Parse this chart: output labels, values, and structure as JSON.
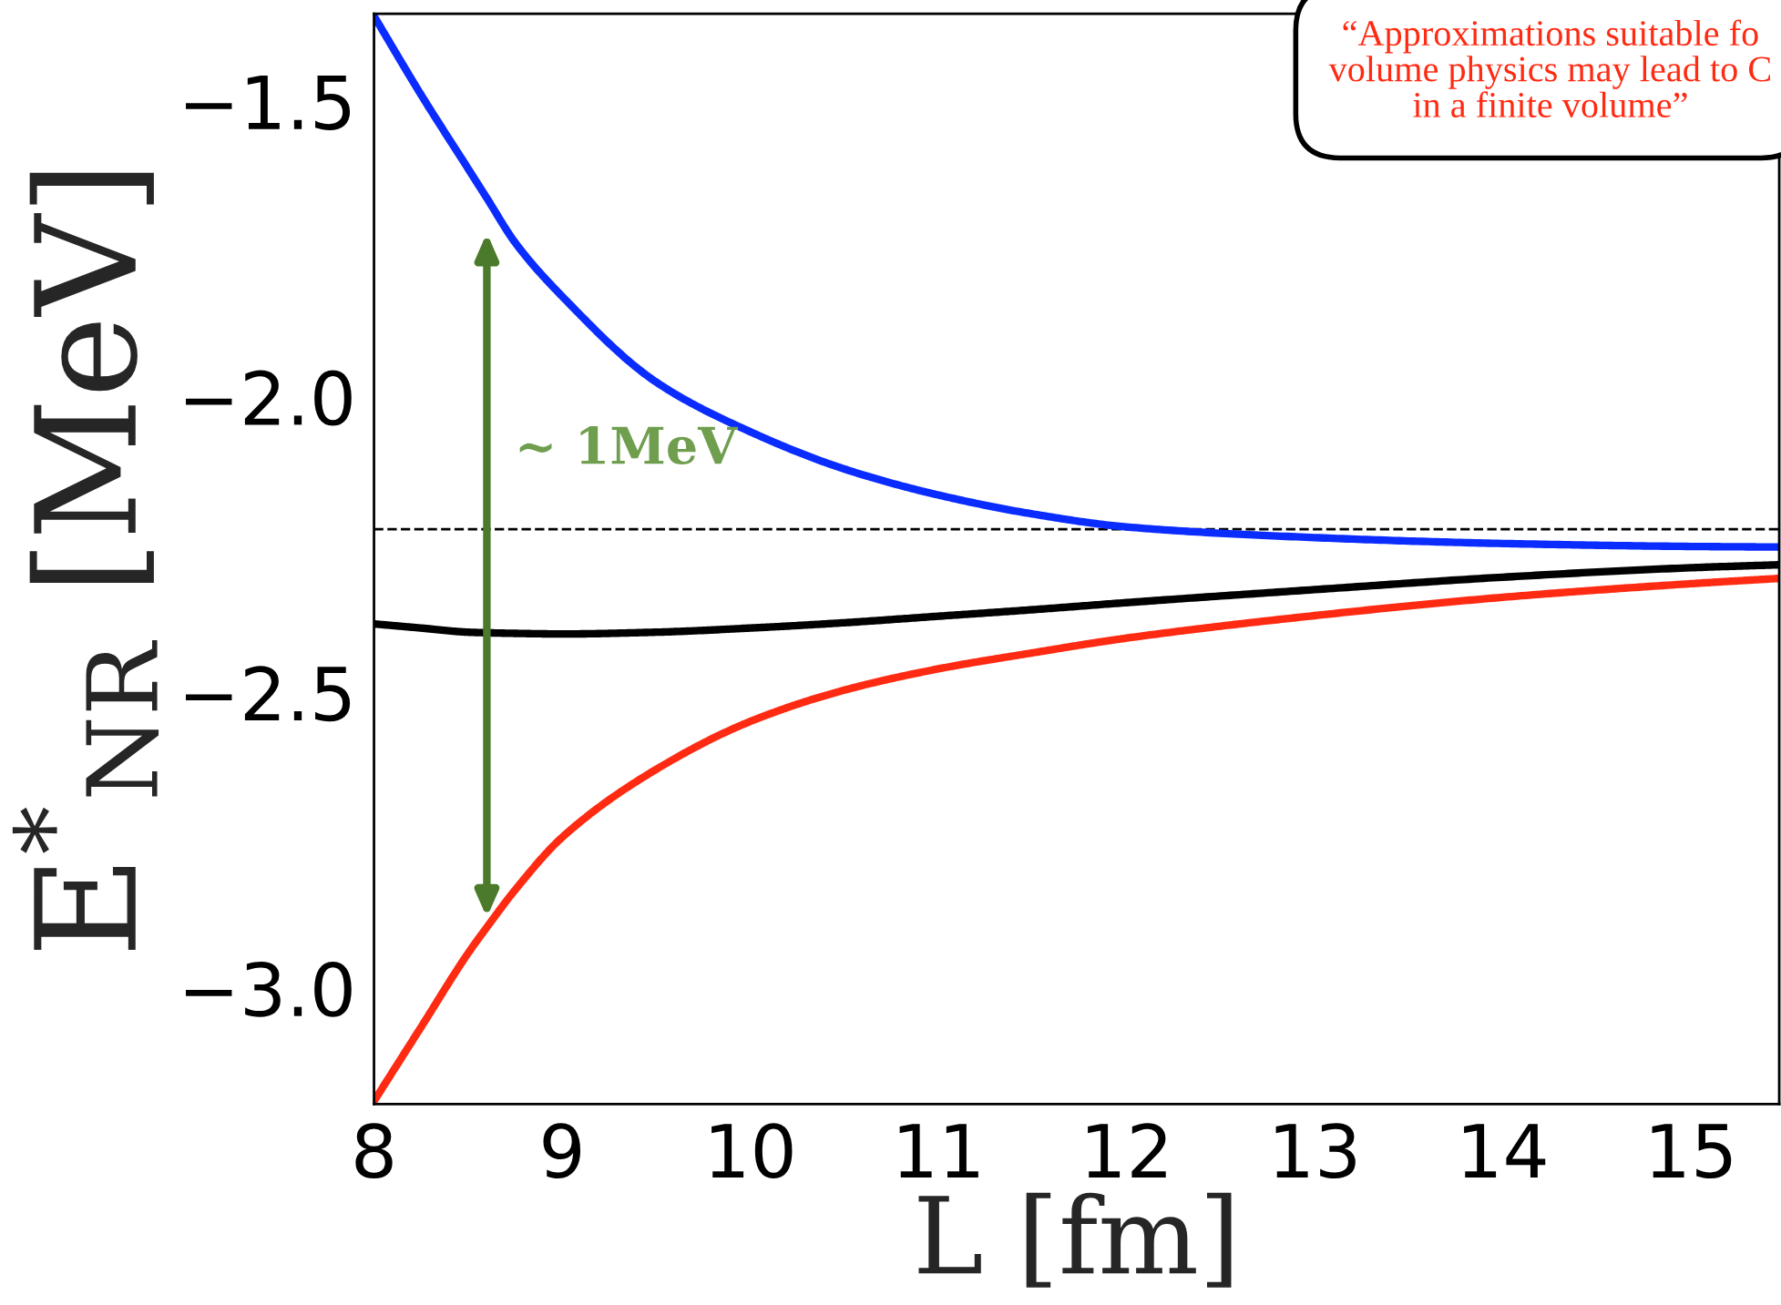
{
  "chart_data": {
    "type": "line",
    "xlabel": "L [fm]",
    "ylabel": "E$^{*}$$_{NR}$ [MeV]",
    "x": [
      8,
      8.25,
      8.5,
      8.6,
      8.75,
      9,
      9.5,
      10,
      10.5,
      11,
      11.5,
      12,
      13,
      14,
      15,
      15.47
    ],
    "series": [
      {
        "color": "#0a2cff",
        "values": [
          -1.356,
          -1.489,
          -1.614,
          -1.664,
          -1.739,
          -1.83,
          -1.975,
          -2.059,
          -2.122,
          -2.166,
          -2.198,
          -2.22,
          -2.238,
          -2.248,
          -2.253,
          -2.254
        ]
      },
      {
        "color": "#000000",
        "values": [
          -2.384,
          -2.391,
          -2.398,
          -2.399,
          -2.4,
          -2.401,
          -2.398,
          -2.391,
          -2.382,
          -2.371,
          -2.36,
          -2.348,
          -2.326,
          -2.305,
          -2.289,
          -2.284
        ]
      },
      {
        "color": "#ff2a12",
        "values": [
          -3.191,
          -3.066,
          -2.941,
          -2.897,
          -2.834,
          -2.745,
          -2.63,
          -2.549,
          -2.496,
          -2.46,
          -2.433,
          -2.408,
          -2.37,
          -2.339,
          -2.316,
          -2.307
        ]
      }
    ],
    "xlim": [
      8,
      15.47
    ],
    "ylim": [
      -3.196,
      -1.352
    ],
    "xticks": [
      8,
      9,
      10,
      11,
      12,
      13,
      14,
      15
    ],
    "yticks": [
      {
        "value": -1.5,
        "label": "−1.5"
      },
      {
        "value": -2.0,
        "label": "−2.0"
      },
      {
        "value": -2.5,
        "label": "−2.5"
      },
      {
        "value": -3.0,
        "label": "−3.0"
      }
    ],
    "ref_lines": [
      {
        "axis": "y",
        "value": -2.224,
        "color": "#000000",
        "line_style": "dashed"
      }
    ],
    "annotations": [
      "~ 1MeV",
      "“Approximations suitable fo\nvolume physics may lead to C\nin a finite volume”"
    ],
    "grid": false,
    "legend": false,
    "marker": "none",
    "line_style": "solid"
  }
}
